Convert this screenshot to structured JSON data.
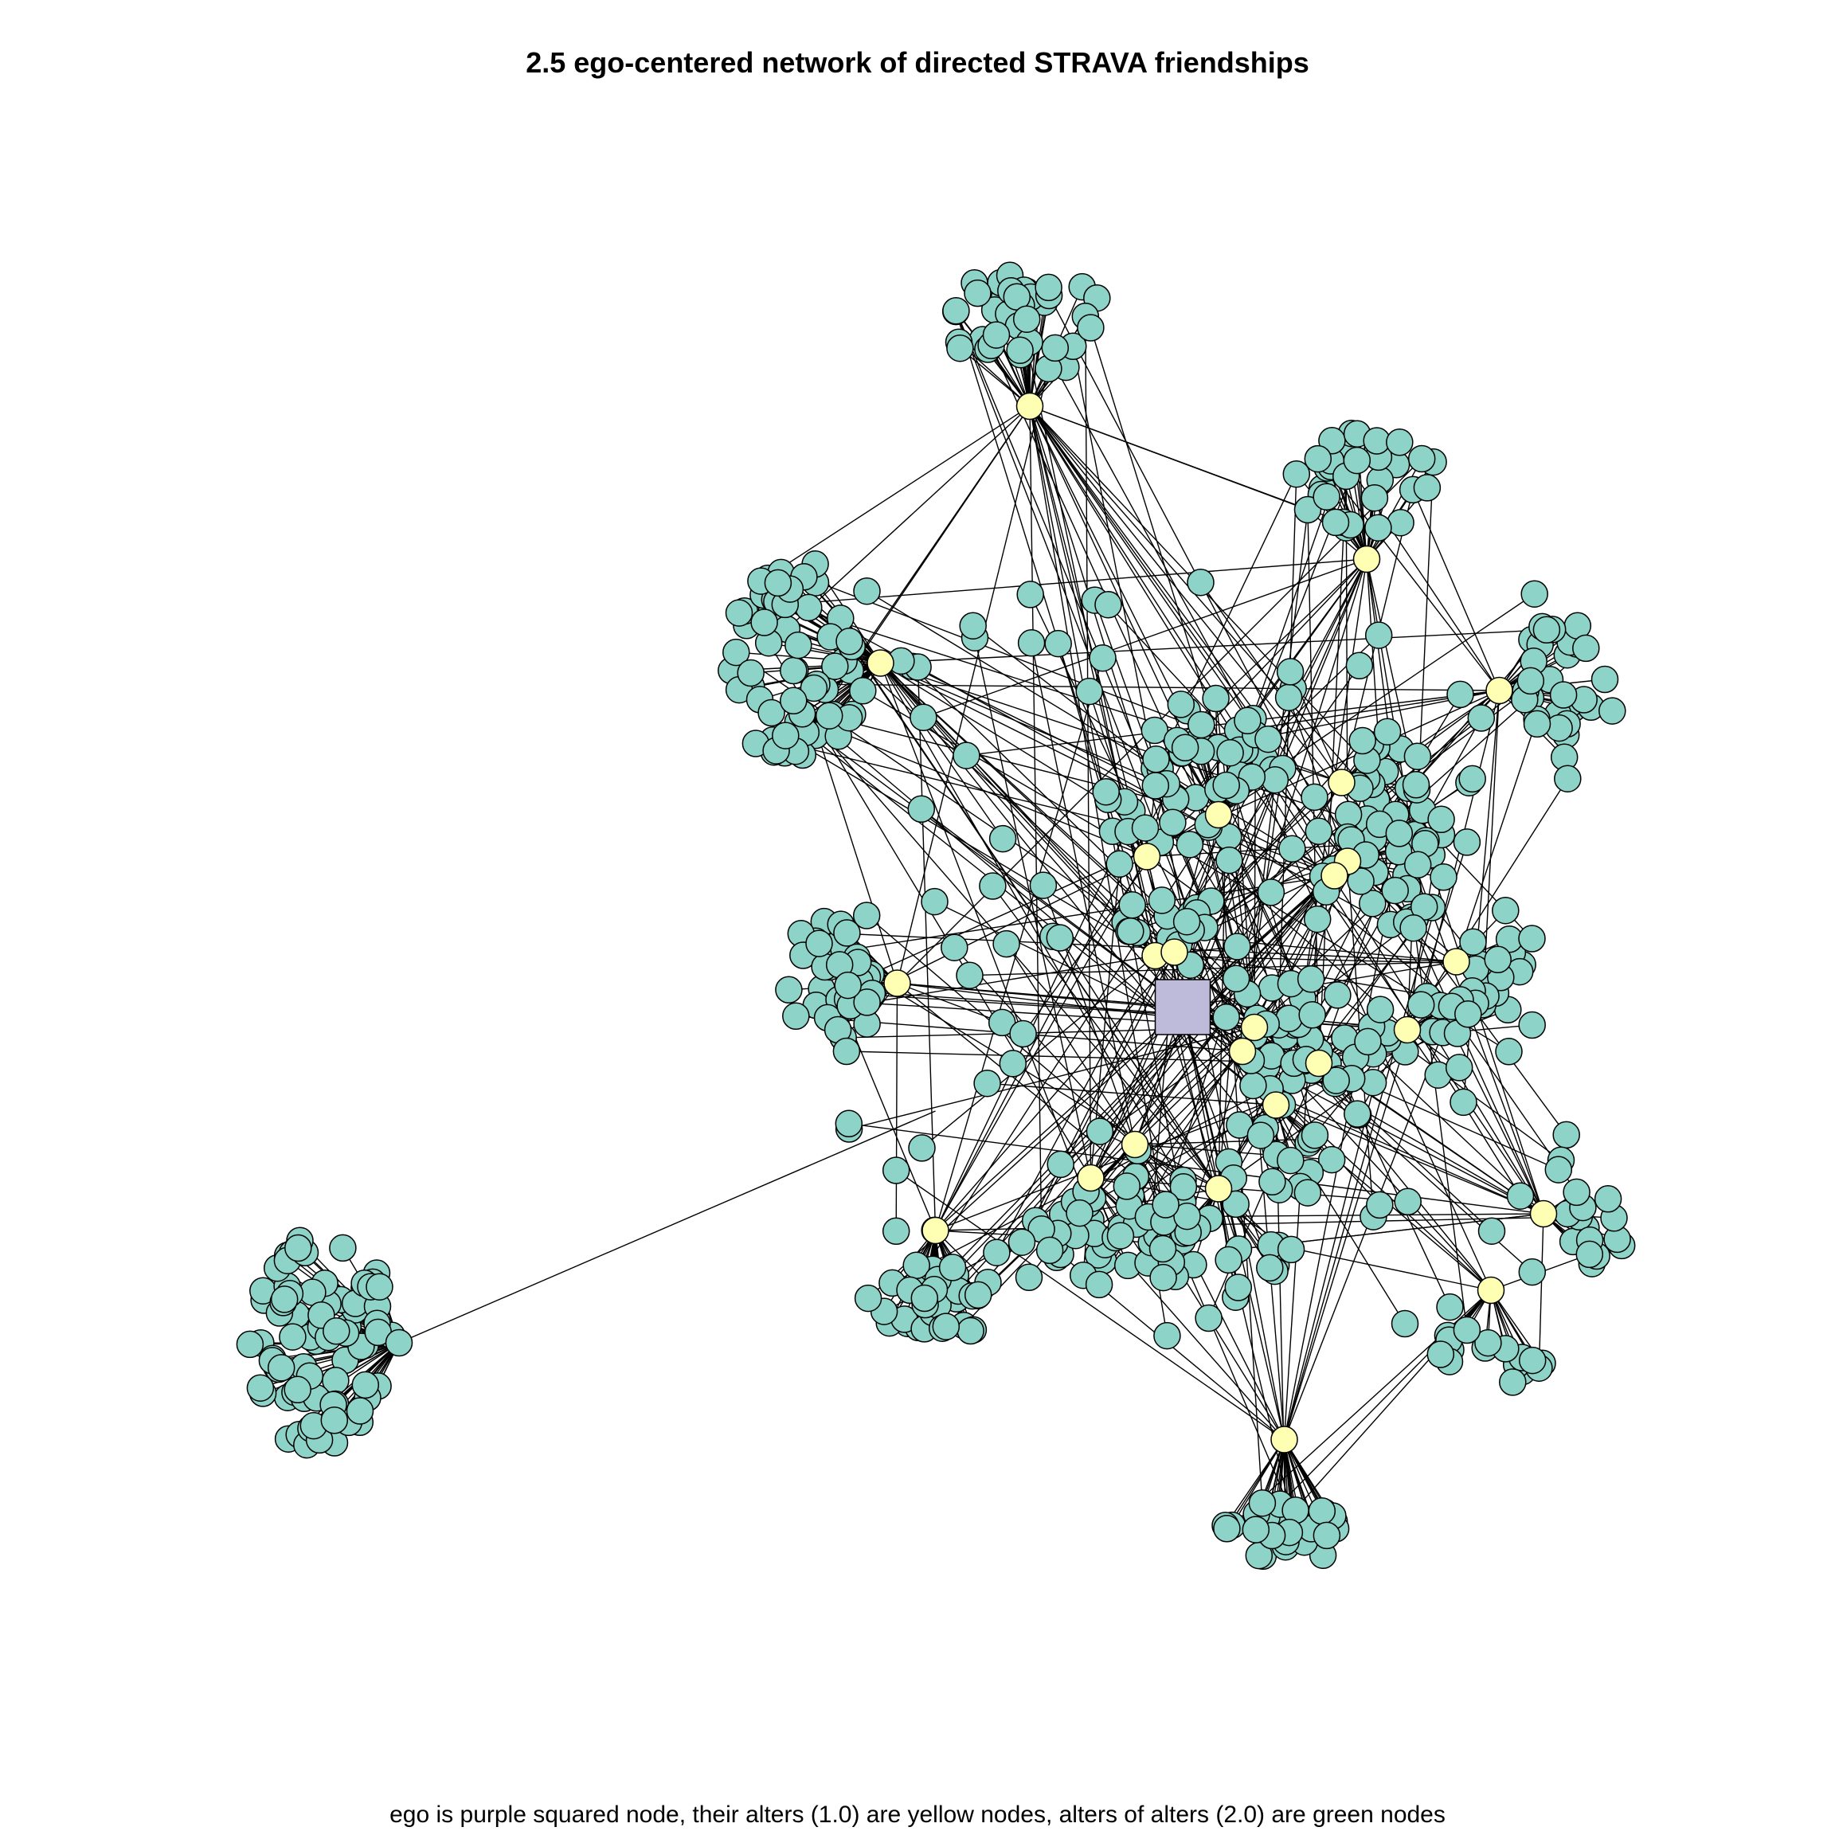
{
  "title": "2.5 ego-centered network of directed STRAVA friendships",
  "caption": "ego is purple squared node, their alters (1.0) are yellow nodes, alters of alters (2.0) are green nodes",
  "colors": {
    "ego": "#BEBADA",
    "alter": "#FFFFB3",
    "alter_of_alter": "#8DD3C7",
    "edge": "#000000",
    "node_stroke": "#000000",
    "background": "#FFFFFF"
  },
  "legend": {
    "ego_shape": "square",
    "alter_shape": "circle",
    "alter_of_alter_shape": "circle"
  }
}
